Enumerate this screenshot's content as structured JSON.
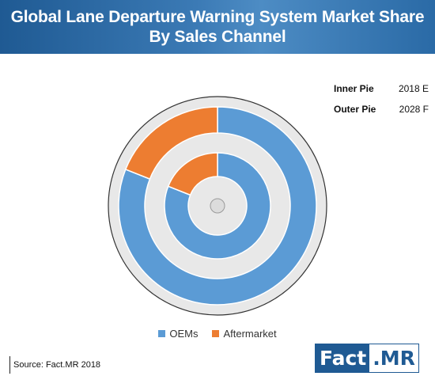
{
  "header": {
    "title": "Global Lane Departure Warning System Market Share By Sales Channel"
  },
  "pie_info": [
    {
      "label": "Inner Pie",
      "value": "2018 E"
    },
    {
      "label": "Outer Pie",
      "value": "2028 F"
    }
  ],
  "chart_data": {
    "type": "pie",
    "variant": "nested-donut",
    "title": "Global Lane Departure Warning System Market Share By Sales Channel",
    "categories": [
      "OEMs",
      "Aftermarket"
    ],
    "colors": [
      "#5b9bd5",
      "#ed7d31"
    ],
    "series": [
      {
        "name": "2018 E",
        "ring": "inner",
        "values": [
          81,
          19
        ]
      },
      {
        "name": "2028 F",
        "ring": "outer",
        "values": [
          81,
          19
        ]
      }
    ],
    "legend": "bottom-center"
  },
  "footer": {
    "source": "Source: Fact.MR  2018",
    "logo_left": "Fact",
    "logo_right": ".MR"
  }
}
